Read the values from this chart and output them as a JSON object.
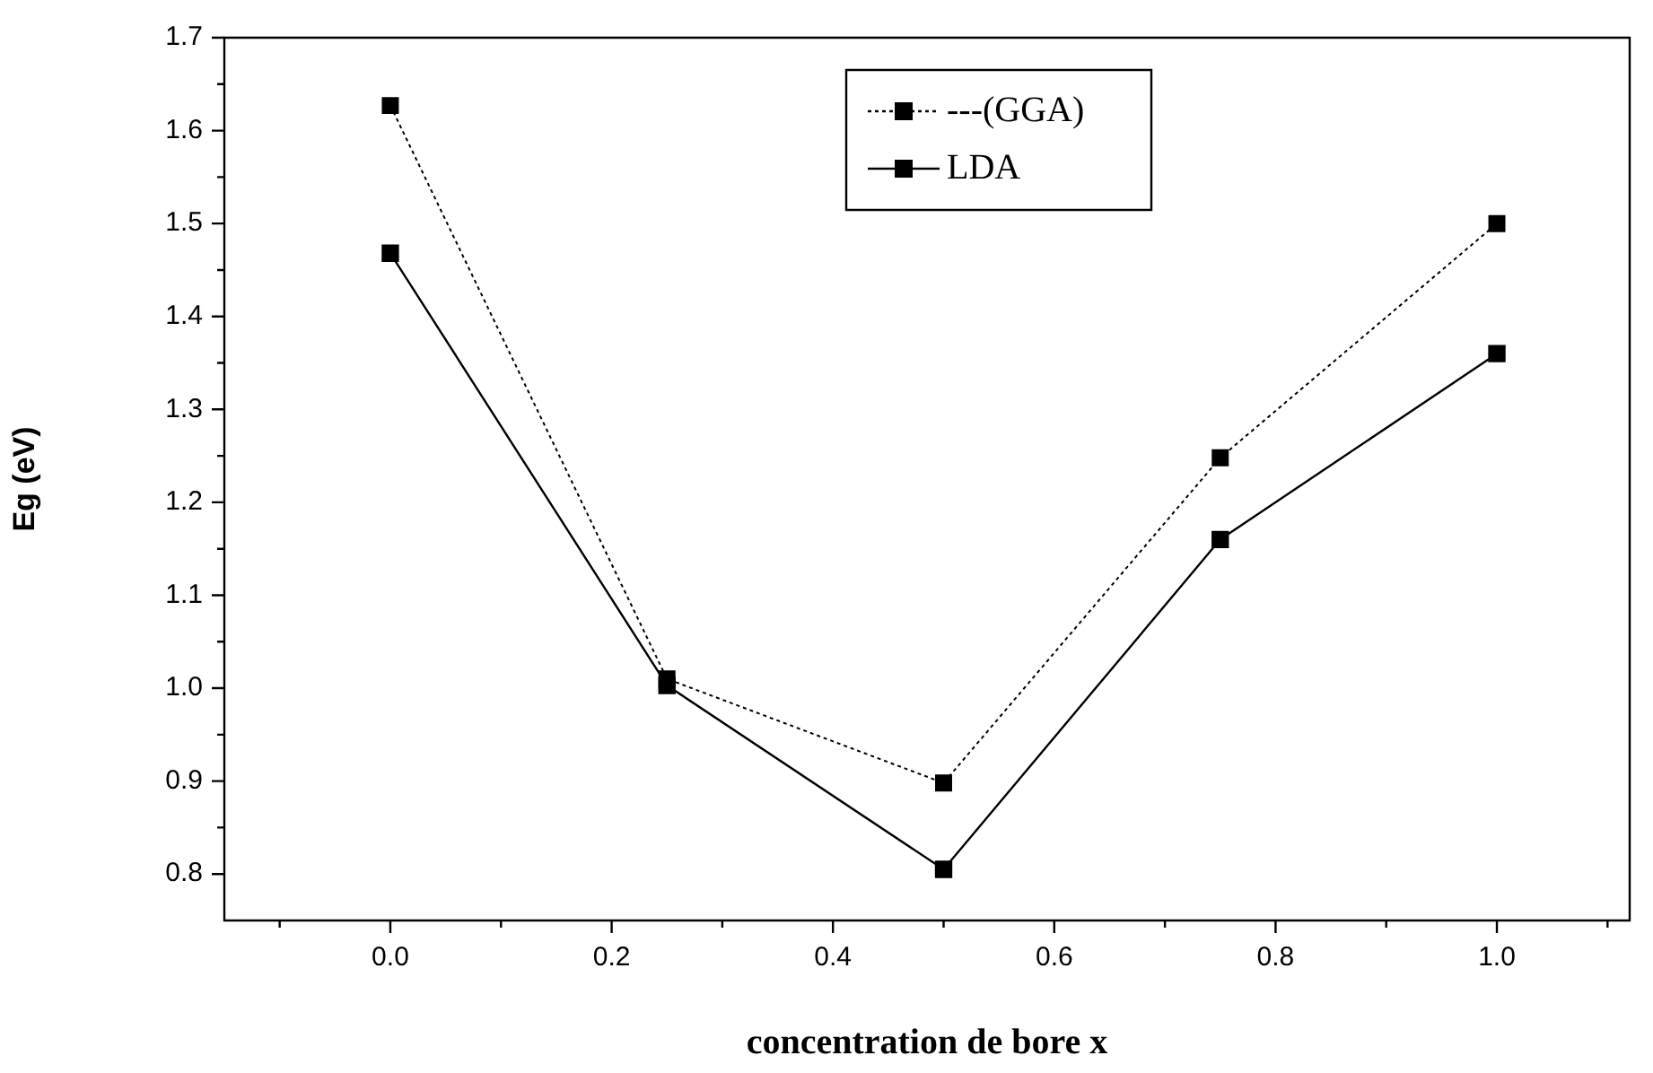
{
  "chart_data": {
    "type": "line",
    "xlabel": "concentration de bore x",
    "ylabel": "Eg (eV)",
    "x": [
      0,
      0.25,
      0.5,
      0.75,
      1.0
    ],
    "series": [
      {
        "name": "---(GGA)",
        "color": "#000000",
        "line_style": "dotted",
        "marker": "square",
        "values": [
          1.627,
          1.01,
          0.898,
          1.248,
          1.5
        ]
      },
      {
        "name": "LDA",
        "color": "#000000",
        "line_style": "solid",
        "marker": "square",
        "values": [
          1.468,
          1.003,
          0.805,
          1.16,
          1.36
        ]
      }
    ],
    "xlim": [
      -0.15,
      1.12
    ],
    "ylim": [
      0.75,
      1.7
    ],
    "xticks": [
      {
        "value": -0.1,
        "label": null
      },
      {
        "value": 0,
        "label": "0.0"
      },
      {
        "value": 0.1,
        "label": null
      },
      {
        "value": 0.2,
        "label": "0.2"
      },
      {
        "value": 0.3,
        "label": null
      },
      {
        "value": 0.4,
        "label": "0.4"
      },
      {
        "value": 0.5,
        "label": null
      },
      {
        "value": 0.6,
        "label": "0.6"
      },
      {
        "value": 0.7,
        "label": null
      },
      {
        "value": 0.8,
        "label": "0.8"
      },
      {
        "value": 0.9,
        "label": null
      },
      {
        "value": 1.0,
        "label": "1.0"
      },
      {
        "value": 1.1,
        "label": null
      }
    ],
    "yticks": [
      {
        "value": 0.8,
        "label": "0.8"
      },
      {
        "value": 0.85,
        "label": null
      },
      {
        "value": 0.9,
        "label": "0.9"
      },
      {
        "value": 0.95,
        "label": null
      },
      {
        "value": 1.0,
        "label": "1.0"
      },
      {
        "value": 1.05,
        "label": null
      },
      {
        "value": 1.1,
        "label": "1.1"
      },
      {
        "value": 1.15,
        "label": null
      },
      {
        "value": 1.2,
        "label": "1.2"
      },
      {
        "value": 1.25,
        "label": null
      },
      {
        "value": 1.3,
        "label": "1.3"
      },
      {
        "value": 1.35,
        "label": null
      },
      {
        "value": 1.4,
        "label": "1.4"
      },
      {
        "value": 1.45,
        "label": null
      },
      {
        "value": 1.5,
        "label": "1.5"
      },
      {
        "value": 1.55,
        "label": null
      },
      {
        "value": 1.6,
        "label": "1.6"
      },
      {
        "value": 1.65,
        "label": null
      },
      {
        "value": 1.7,
        "label": "1.7"
      }
    ],
    "legend": "top"
  }
}
